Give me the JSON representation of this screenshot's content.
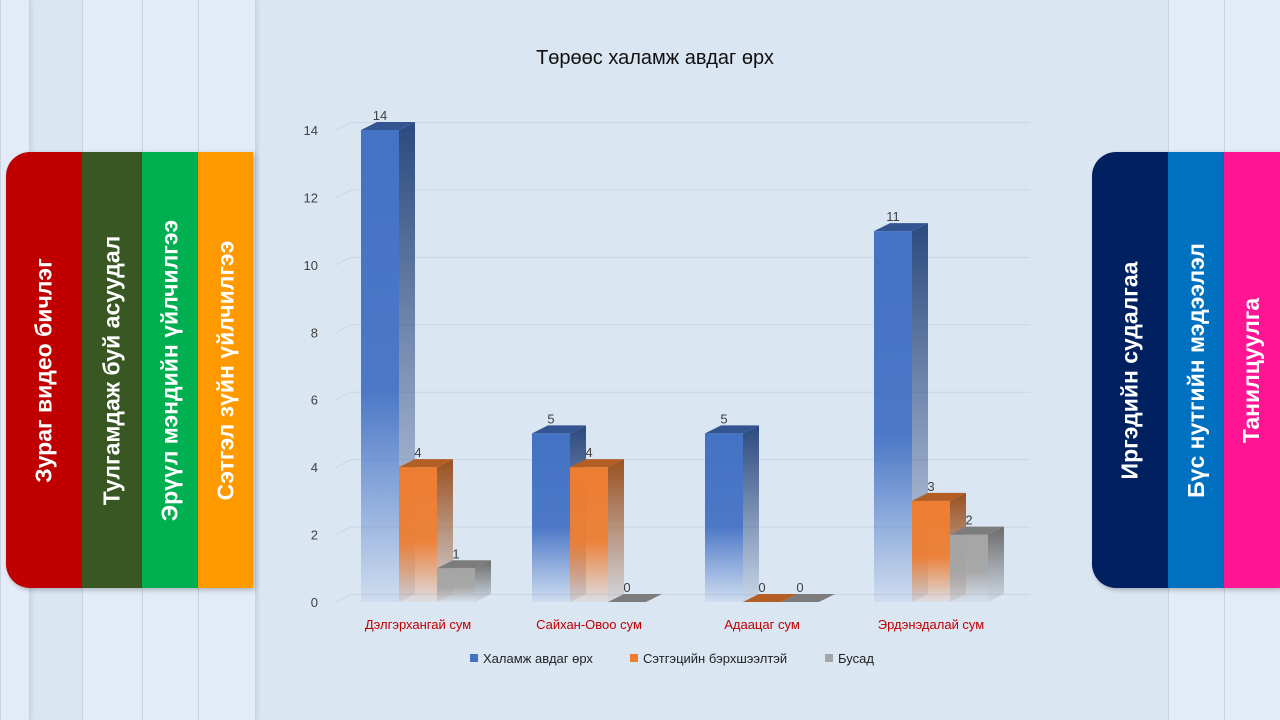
{
  "left_tabs": [
    {
      "label": "Зураг видео бичлэг",
      "color": "#c00000"
    },
    {
      "label": "Тулгамдаж буй асуудал",
      "color": "#385723"
    },
    {
      "label": "Эрүүл мэндийн үйлчилгээ",
      "color": "#00b050"
    },
    {
      "label": "Сэтгэл зүйн үйлчилгээ",
      "color": "#ff9900"
    }
  ],
  "right_tabs": [
    {
      "label": "Иргэдийн судалгаа",
      "color": "#002060"
    },
    {
      "label": "Бүс нутгийн мэдээлэл",
      "color": "#0070c0"
    },
    {
      "label": "Танилцуулга",
      "color": "#ff1493"
    }
  ],
  "chart_data": {
    "type": "bar",
    "title": "Төрөөс халамж авдаг өрх",
    "categories": [
      "Дэлгэрхангай сум",
      "Сайхан-Овоо сум",
      "Адаацаг сум",
      "Эрдэнэдалай сум"
    ],
    "series": [
      {
        "name": "Халамж авдаг өрх",
        "values": [
          14,
          5,
          5,
          11
        ],
        "color": "#4472c4"
      },
      {
        "name": "Сэтгэцийн бэрхшээлтэй",
        "values": [
          4,
          4,
          0,
          3
        ],
        "color": "#ed7d31"
      },
      {
        "name": "Бусад",
        "values": [
          1,
          0,
          0,
          2
        ],
        "color": "#a5a5a5"
      }
    ],
    "ylim": [
      0,
      14
    ],
    "yticks": [
      0,
      2,
      4,
      6,
      8,
      10,
      12,
      14
    ],
    "grid": true,
    "legend_position": "bottom",
    "category_label_color": "#c00000"
  }
}
